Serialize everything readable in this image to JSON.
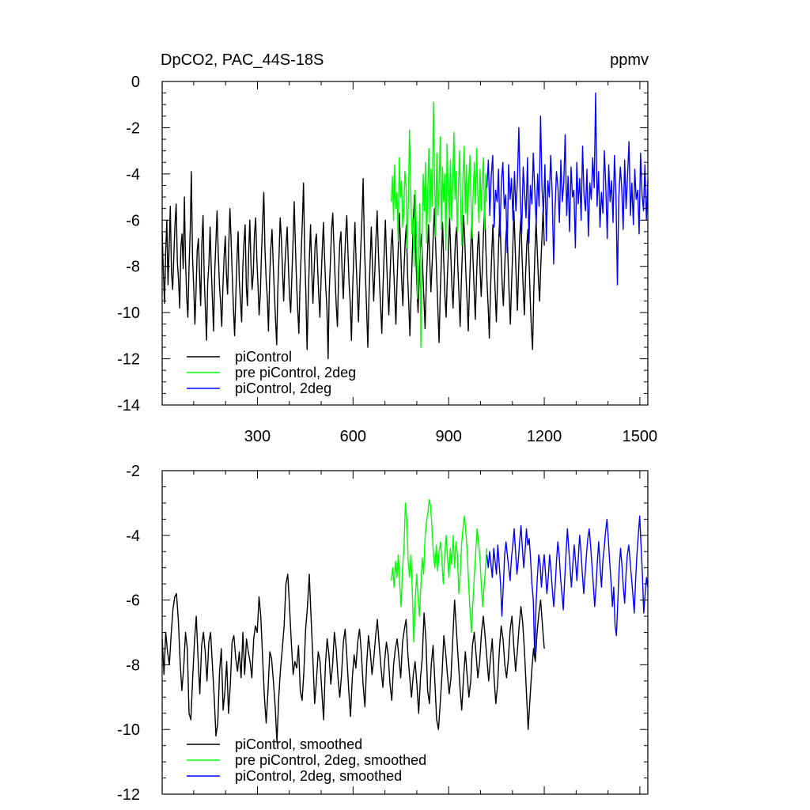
{
  "title_left": "DpCO2, PAC_44S-18S",
  "title_right": "ppmv",
  "chart_data": [
    {
      "type": "line",
      "id": "raw",
      "xlim": [
        1,
        1525
      ],
      "ylim": [
        -14,
        0
      ],
      "yticks": [
        0,
        -2,
        -4,
        -6,
        -8,
        -10,
        -12,
        -14
      ],
      "ytick_labels": [
        "0",
        "-2",
        "-4",
        "-6",
        "-8",
        "-10",
        "-12",
        "-14"
      ],
      "xticks": [
        300,
        600,
        900,
        1200,
        1500
      ],
      "xtick_labels": [
        "300",
        "600",
        "900",
        "1200",
        "1500"
      ],
      "legend": [
        "piControl",
        "pre piControl, 2deg",
        "piControl, 2deg"
      ],
      "legend_position": "bottom-left",
      "series": [
        {
          "name": "piControl",
          "color": "#000000",
          "x_range": [
            1,
            1200
          ],
          "values": [
            -6.5,
            -8.2,
            -9.6,
            -7.4,
            -6.0,
            -8.8,
            -7.1,
            -5.4,
            -8.3,
            -9.0,
            -7.5,
            -6.2,
            -5.3,
            -7.8,
            -8.6,
            -9.8,
            -7.2,
            -6.6,
            -8.1,
            -5.0,
            -7.7,
            -9.3,
            -10.2,
            -8.0,
            -6.4,
            -3.9,
            -7.6,
            -8.9,
            -10.5,
            -9.1,
            -7.3,
            -6.8,
            -8.4,
            -9.7,
            -7.0,
            -5.8,
            -8.5,
            -9.9,
            -11.2,
            -8.7,
            -7.9,
            -6.3,
            -8.0,
            -9.4,
            -10.8,
            -8.2,
            -6.9,
            -5.6,
            -7.4,
            -8.8,
            -9.6,
            -10.6,
            -8.9,
            -7.6,
            -6.7,
            -8.3,
            -9.2,
            -7.1,
            -5.5,
            -6.9,
            -8.4,
            -9.8,
            -11.0,
            -9.3,
            -7.8,
            -6.5,
            -8.6,
            -9.5,
            -10.4,
            -8.1,
            -7.0,
            -6.2,
            -8.9,
            -9.7,
            -7.5,
            -6.0,
            -7.9,
            -9.0,
            -8.3,
            -6.6,
            -5.9,
            -7.7,
            -8.8,
            -10.1,
            -9.2,
            -7.4,
            -6.1,
            -4.8,
            -7.3,
            -8.6,
            -9.4,
            -10.8,
            -8.5,
            -7.2,
            -6.4,
            -7.8,
            -9.1,
            -10.3,
            -11.4,
            -9.0,
            -7.6,
            -5.9,
            -6.8,
            -8.2,
            -9.5,
            -8.0,
            -7.1,
            -6.3,
            -7.9,
            -9.3,
            -10.0,
            -8.4,
            -6.9,
            -5.2,
            -7.0,
            -8.7,
            -9.9,
            -10.9,
            -8.8,
            -7.4,
            -6.0,
            -4.4,
            -7.5,
            -9.2,
            -11.6,
            -9.4,
            -7.7,
            -6.2,
            -8.1,
            -9.6,
            -8.3,
            -7.0,
            -6.6,
            -8.0,
            -9.3,
            -10.2,
            -8.6,
            -7.3,
            -6.1,
            -7.6,
            -8.9,
            -9.8,
            -12.0,
            -9.1,
            -7.8,
            -6.4,
            -5.7,
            -7.2,
            -8.5,
            -9.7,
            -10.6,
            -8.3,
            -7.0,
            -6.5,
            -8.2,
            -9.4,
            -7.9,
            -6.7,
            -5.8,
            -7.4,
            -8.8,
            -9.6,
            -11.2,
            -9.0,
            -7.5,
            -6.1,
            -7.8,
            -9.1,
            -10.4,
            -8.6,
            -7.2,
            -5.9,
            -4.2,
            -7.0,
            -8.4,
            -9.9,
            -11.5,
            -9.3,
            -7.7,
            -6.3,
            -8.0,
            -9.5,
            -8.2,
            -6.8,
            -5.6,
            -7.3,
            -8.7,
            -9.8,
            -10.9,
            -8.9,
            -7.4,
            -6.0,
            -7.6,
            -9.0,
            -10.1,
            -8.4,
            -7.1,
            -6.4,
            -7.9,
            -9.2,
            -10.5,
            -8.7,
            -7.3,
            -5.7,
            -7.1,
            -8.6,
            -9.7,
            -8.1,
            -6.9,
            -6.2,
            -8.3,
            -9.6,
            -11.0,
            -9.2,
            -7.6,
            -6.0,
            -4.9,
            -7.4,
            -8.8,
            -10.0,
            -8.5,
            -7.2,
            -6.6,
            -8.1,
            -9.4,
            -10.7,
            -8.8,
            -7.5,
            -6.2,
            -7.7,
            -9.1,
            -8.0,
            -6.7,
            -5.5,
            -7.0,
            -8.5,
            -9.9,
            -11.3,
            -9.1,
            -7.6,
            -6.1,
            -7.8,
            -9.3,
            -10.2,
            -8.6,
            -7.3,
            -5.9,
            -7.5,
            -8.9,
            -9.8,
            -8.2,
            -6.8,
            -6.3,
            -7.9,
            -9.2,
            -10.6,
            -8.7,
            -7.2,
            -5.8,
            -6.9,
            -8.4,
            -9.6,
            -10.8,
            -8.9,
            -7.4,
            -6.0,
            -7.6,
            -9.0,
            -10.3,
            -8.5,
            -7.1,
            -6.5,
            -8.0,
            -9.3,
            -8.1,
            -6.6,
            -5.4,
            -7.2,
            -8.7,
            -9.8,
            -11.1,
            -9.0,
            -7.5,
            -6.2,
            -7.7,
            -9.1,
            -10.4,
            -8.6,
            -7.0,
            -5.7,
            -7.4,
            -8.8,
            -9.7,
            -8.3,
            -6.9,
            -6.1,
            -7.8,
            -9.2,
            -10.5,
            -8.8,
            -7.3,
            -5.6,
            -7.0,
            -8.5,
            -9.9,
            -8.2,
            -6.7,
            -5.9,
            -7.6,
            -9.0,
            -10.1,
            -8.4,
            -7.1,
            -6.4,
            -7.9,
            -9.4,
            -10.7,
            -11.6,
            -9.1,
            -7.5,
            -6.0,
            -7.3,
            -8.6,
            -9.5,
            -8.0,
            -6.8,
            -5.5,
            -7.1
          ],
          "legend_label": "piControl"
        },
        {
          "name": "pre piControl, 2deg",
          "color": "#00ff00",
          "x_range": [
            720,
            1020
          ],
          "values": [
            -5.2,
            -4.1,
            -6.0,
            -3.6,
            -5.5,
            -4.8,
            -6.9,
            -3.3,
            -5.0,
            -4.3,
            -6.3,
            -5.7,
            -3.9,
            -4.6,
            -7.2,
            -5.1,
            -2.1,
            -4.4,
            -6.6,
            -5.9,
            -8.0,
            -4.7,
            -6.2,
            -9.4,
            -7.5,
            -5.3,
            -11.5,
            -6.8,
            -4.0,
            -5.6,
            -3.5,
            -7.0,
            -4.9,
            -2.9,
            -6.1,
            -3.8,
            -5.4,
            -0.9,
            -4.2,
            -6.7,
            -3.1,
            -5.8,
            -4.5,
            -2.4,
            -6.4,
            -3.7,
            -5.2,
            -4.0,
            -7.3,
            -2.7,
            -4.8,
            -5.9,
            -3.4,
            -6.0,
            -4.3,
            -2.2,
            -5.1,
            -3.9,
            -6.5,
            -4.6,
            -3.0,
            -5.5,
            -7.1,
            -4.1,
            -2.8,
            -5.7,
            -3.6,
            -6.2,
            -4.4,
            -3.2,
            -5.0,
            -6.8,
            -4.7,
            -3.5,
            -5.3,
            -2.9,
            -4.9,
            -6.1,
            -3.8,
            -5.6,
            -4.2,
            -3.3,
            -6.4,
            -4.0,
            -5.2
          ]
        },
        {
          "name": "piControl, 2deg",
          "color": "#0000ff",
          "x_range": [
            1020,
            1525
          ],
          "values": [
            -4.6,
            -3.4,
            -5.8,
            -4.1,
            -3.2,
            -6.3,
            -4.7,
            -5.2,
            -3.8,
            -6.7,
            -4.3,
            -3.5,
            -5.5,
            -4.9,
            -7.4,
            -3.6,
            -5.1,
            -4.2,
            -6.0,
            -3.9,
            -5.6,
            -4.4,
            -2.0,
            -5.0,
            -6.6,
            -3.7,
            -4.8,
            -5.9,
            -3.3,
            -7.0,
            -4.5,
            -5.3,
            -3.1,
            -4.7,
            -6.2,
            -4.0,
            -5.4,
            -1.5,
            -4.6,
            -5.7,
            -3.6,
            -6.9,
            -4.3,
            -5.0,
            -3.2,
            -4.8,
            -7.9,
            -5.5,
            -3.9,
            -4.6,
            -6.1,
            -3.4,
            -5.2,
            -4.4,
            -2.3,
            -5.8,
            -4.1,
            -6.5,
            -3.7,
            -5.0,
            -4.7,
            -7.2,
            -3.5,
            -5.3,
            -4.2,
            -6.0,
            -2.8,
            -4.9,
            -5.6,
            -3.8,
            -6.7,
            -4.4,
            -5.1,
            -3.3,
            -4.6,
            -0.5,
            -5.4,
            -3.9,
            -6.3,
            -4.8,
            -5.7,
            -3.0,
            -4.5,
            -6.8,
            -3.6,
            -5.2,
            -4.3,
            -6.1,
            -3.2,
            -4.9,
            -8.8,
            -5.0,
            -3.7,
            -4.6,
            -6.4,
            -3.4,
            -5.5,
            -4.1,
            -2.6,
            -5.8,
            -4.4,
            -6.2,
            -3.8,
            -5.1,
            -4.7,
            -6.6,
            -3.1,
            -4.9,
            -5.6,
            -3.6,
            -6.0,
            -4.3
          ]
        }
      ]
    },
    {
      "type": "line",
      "id": "smoothed",
      "xlim": [
        1,
        1525
      ],
      "ylim": [
        -12,
        -2
      ],
      "yticks": [
        -2,
        -4,
        -6,
        -8,
        -10,
        -12
      ],
      "ytick_labels": [
        "-2",
        "-4",
        "-6",
        "-8",
        "-10",
        "-12"
      ],
      "xticks": [
        300,
        600,
        900,
        1200,
        1500
      ],
      "legend": [
        "piControl, smoothed",
        "pre piControl, 2deg, smoothed",
        "piControl, 2deg, smoothed"
      ],
      "legend_position": "bottom-left",
      "series": [
        {
          "name": "piControl, smoothed",
          "color": "#000000",
          "x_range": [
            1,
            1200
          ],
          "values": [
            -7.2,
            -8.3,
            -7.0,
            -7.6,
            -8.0,
            -7.1,
            -6.3,
            -5.9,
            -5.8,
            -6.6,
            -7.9,
            -8.8,
            -8.1,
            -7.0,
            -7.5,
            -9.5,
            -9.7,
            -8.4,
            -7.3,
            -6.5,
            -7.8,
            -8.9,
            -7.4,
            -7.0,
            -7.6,
            -8.5,
            -7.3,
            -7.0,
            -8.0,
            -9.0,
            -10.2,
            -9.8,
            -8.2,
            -7.5,
            -9.4,
            -8.8,
            -7.9,
            -9.5,
            -8.6,
            -7.3,
            -7.1,
            -7.8,
            -8.2,
            -7.6,
            -8.4,
            -7.0,
            -8.3,
            -7.2,
            -7.6,
            -7.9,
            -8.4,
            -7.2,
            -6.8,
            -7.0,
            -5.9,
            -6.5,
            -7.8,
            -9.0,
            -9.8,
            -8.8,
            -7.6,
            -7.8,
            -8.5,
            -9.3,
            -10.4,
            -9.0,
            -8.1,
            -7.5,
            -6.8,
            -5.5,
            -5.2,
            -6.2,
            -7.3,
            -8.3,
            -7.9,
            -8.1,
            -7.4,
            -8.8,
            -9.1,
            -8.2,
            -6.9,
            -6.2,
            -5.2,
            -6.5,
            -7.8,
            -9.2,
            -8.5,
            -7.6,
            -7.9,
            -8.8,
            -9.7,
            -8.0,
            -7.2,
            -7.7,
            -8.6,
            -8.0,
            -7.0,
            -7.5,
            -8.4,
            -9.0,
            -8.3,
            -7.3,
            -6.9,
            -7.8,
            -8.8,
            -9.6,
            -8.4,
            -7.7,
            -8.1,
            -7.3,
            -6.9,
            -7.6,
            -8.6,
            -9.3,
            -8.0,
            -7.1,
            -7.6,
            -8.3,
            -7.8,
            -7.1,
            -6.6,
            -7.4,
            -8.1,
            -8.7,
            -7.9,
            -7.3,
            -7.7,
            -8.6,
            -9.1,
            -8.0,
            -7.5,
            -7.2,
            -7.8,
            -8.4,
            -7.3,
            -6.9,
            -6.6,
            -7.7,
            -8.4,
            -9.0,
            -8.3,
            -7.9,
            -8.6,
            -9.5,
            -8.4,
            -7.8,
            -6.4,
            -7.2,
            -8.8,
            -9.2,
            -8.0,
            -7.4,
            -8.5,
            -9.7,
            -10.0,
            -9.2,
            -8.3,
            -7.1,
            -7.6,
            -8.3,
            -8.9,
            -8.4,
            -7.2,
            -6.0,
            -6.9,
            -7.8,
            -8.7,
            -9.4,
            -8.4,
            -7.6,
            -8.3,
            -9.0,
            -8.5,
            -7.4,
            -7.0,
            -7.7,
            -8.4,
            -7.9,
            -7.0,
            -6.5,
            -7.1,
            -7.8,
            -8.5,
            -7.8,
            -7.2,
            -8.4,
            -9.2,
            -8.6,
            -7.5,
            -6.8,
            -7.2,
            -8.0,
            -8.4,
            -7.8,
            -6.9,
            -6.5,
            -7.4,
            -8.2,
            -7.6,
            -6.8,
            -6.2,
            -6.7,
            -7.6,
            -8.8,
            -10.0,
            -9.1,
            -8.2,
            -7.5,
            -7.9,
            -7.0,
            -6.4,
            -6.0,
            -6.8,
            -7.5
          ]
        },
        {
          "name": "pre piControl, 2deg, smoothed",
          "color": "#00ff00",
          "x_range": [
            720,
            1020
          ],
          "values": [
            -5.4,
            -5.0,
            -5.6,
            -4.8,
            -5.3,
            -4.6,
            -5.5,
            -6.2,
            -5.0,
            -4.4,
            -3.0,
            -3.5,
            -4.8,
            -5.3,
            -4.6,
            -5.8,
            -7.3,
            -6.0,
            -5.2,
            -5.9,
            -6.5,
            -5.6,
            -4.7,
            -5.2,
            -4.1,
            -3.6,
            -3.3,
            -2.9,
            -3.1,
            -3.8,
            -4.6,
            -5.0,
            -4.3,
            -5.1,
            -4.5,
            -4.2,
            -4.8,
            -5.5,
            -4.6,
            -4.0,
            -4.7,
            -5.3,
            -4.4,
            -4.9,
            -4.0,
            -5.0,
            -4.2,
            -4.6,
            -5.8,
            -5.2,
            -4.3,
            -3.8,
            -3.4,
            -3.9,
            -4.5,
            -5.5,
            -6.3,
            -7.0,
            -6.1,
            -5.3,
            -4.6,
            -3.8,
            -4.2,
            -4.7,
            -5.5,
            -6.2,
            -5.6,
            -5.0,
            -4.4
          ]
        },
        {
          "name": "piControl, 2deg, smoothed",
          "color": "#0000ff",
          "x_range": [
            1020,
            1525
          ],
          "values": [
            -4.6,
            -5.0,
            -4.5,
            -4.9,
            -5.3,
            -4.4,
            -4.8,
            -5.2,
            -4.3,
            -4.9,
            -5.5,
            -6.5,
            -5.6,
            -4.6,
            -4.2,
            -4.6,
            -5.0,
            -5.4,
            -4.7,
            -4.3,
            -3.8,
            -4.5,
            -5.2,
            -4.8,
            -4.2,
            -3.7,
            -4.4,
            -5.0,
            -4.5,
            -3.8,
            -4.3,
            -4.1,
            -4.7,
            -5.5,
            -6.0,
            -7.7,
            -6.2,
            -5.3,
            -4.6,
            -4.9,
            -5.6,
            -5.0,
            -4.6,
            -5.2,
            -5.8,
            -5.3,
            -4.6,
            -5.1,
            -5.7,
            -6.2,
            -5.6,
            -4.8,
            -4.2,
            -4.6,
            -5.3,
            -5.8,
            -6.3,
            -5.4,
            -4.6,
            -3.8,
            -4.4,
            -5.0,
            -5.6,
            -4.9,
            -4.3,
            -4.8,
            -5.4,
            -4.7,
            -4.0,
            -4.5,
            -5.2,
            -5.8,
            -5.2,
            -4.6,
            -4.1,
            -3.8,
            -4.3,
            -4.9,
            -5.5,
            -6.2,
            -5.6,
            -4.8,
            -4.2,
            -5.0,
            -5.6,
            -4.8,
            -4.4,
            -3.9,
            -3.5,
            -4.1,
            -4.8,
            -5.4,
            -6.2,
            -5.6,
            -6.8,
            -7.1,
            -6.0,
            -5.0,
            -4.4,
            -4.9,
            -5.6,
            -6.1,
            -5.2,
            -4.6,
            -4.3,
            -4.8,
            -5.3,
            -5.8,
            -6.4,
            -5.4,
            -4.6,
            -4.0,
            -3.4,
            -4.3,
            -5.2,
            -6.4,
            -5.8,
            -5.3,
            -5.6
          ]
        }
      ]
    }
  ]
}
